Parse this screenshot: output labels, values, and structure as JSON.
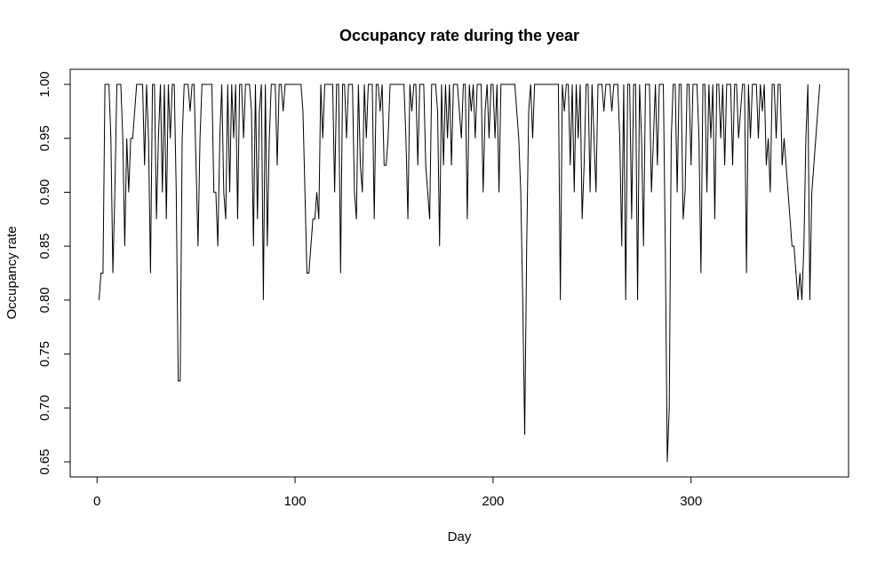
{
  "chart_data": {
    "type": "line",
    "title": "Occupancy rate during the year",
    "xlabel": "Day",
    "ylabel": "Occupancy rate",
    "color": "#000000",
    "xlim": [
      -13.56,
      379.56
    ],
    "xticks": [
      0,
      100,
      200,
      300
    ],
    "ylim": [
      0.636,
      1.014
    ],
    "yticks": [
      0.65,
      {
        "value": 0.7,
        "label": "0.70"
      },
      0.75,
      {
        "value": 0.8,
        "label": "0.80"
      },
      0.85,
      {
        "value": 0.9,
        "label": "0.90"
      },
      0.95,
      {
        "value": 1,
        "label": "1.00"
      }
    ],
    "x": [
      1,
      2,
      3,
      4,
      5,
      6,
      7,
      8,
      9,
      10,
      11,
      12,
      13,
      14,
      15,
      16,
      17,
      18,
      19,
      20,
      21,
      22,
      23,
      24,
      25,
      26,
      27,
      28,
      29,
      30,
      31,
      32,
      33,
      34,
      35,
      36,
      37,
      38,
      39,
      40,
      41,
      42,
      43,
      44,
      45,
      46,
      47,
      48,
      49,
      50,
      51,
      52,
      53,
      54,
      55,
      56,
      57,
      58,
      59,
      60,
      61,
      62,
      63,
      64,
      65,
      66,
      67,
      68,
      69,
      70,
      71,
      72,
      73,
      74,
      75,
      76,
      77,
      78,
      79,
      80,
      81,
      82,
      83,
      84,
      85,
      86,
      87,
      88,
      89,
      90,
      91,
      92,
      93,
      94,
      95,
      96,
      97,
      98,
      99,
      100,
      101,
      102,
      103,
      104,
      105,
      106,
      107,
      108,
      109,
      110,
      111,
      112,
      113,
      114,
      115,
      116,
      117,
      118,
      119,
      120,
      121,
      122,
      123,
      124,
      125,
      126,
      127,
      128,
      129,
      130,
      131,
      132,
      133,
      134,
      135,
      136,
      137,
      138,
      139,
      140,
      141,
      142,
      143,
      144,
      145,
      146,
      147,
      148,
      149,
      150,
      151,
      152,
      153,
      154,
      155,
      156,
      157,
      158,
      159,
      160,
      161,
      162,
      163,
      164,
      165,
      166,
      167,
      168,
      169,
      170,
      171,
      172,
      173,
      174,
      175,
      176,
      177,
      178,
      179,
      180,
      181,
      182,
      183,
      184,
      185,
      186,
      187,
      188,
      189,
      190,
      191,
      192,
      193,
      194,
      195,
      196,
      197,
      198,
      199,
      200,
      201,
      202,
      203,
      204,
      205,
      206,
      207,
      208,
      209,
      210,
      211,
      212,
      213,
      214,
      215,
      216,
      217,
      218,
      219,
      220,
      221,
      222,
      223,
      224,
      225,
      226,
      227,
      228,
      229,
      230,
      231,
      232,
      233,
      234,
      235,
      236,
      237,
      238,
      239,
      240,
      241,
      242,
      243,
      244,
      245,
      246,
      247,
      248,
      249,
      250,
      251,
      252,
      253,
      254,
      255,
      256,
      257,
      258,
      259,
      260,
      261,
      262,
      263,
      264,
      265,
      266,
      267,
      268,
      269,
      270,
      271,
      272,
      273,
      274,
      275,
      276,
      277,
      278,
      279,
      280,
      281,
      282,
      283,
      284,
      285,
      286,
      287,
      288,
      289,
      290,
      291,
      292,
      293,
      294,
      295,
      296,
      297,
      298,
      299,
      300,
      301,
      302,
      303,
      304,
      305,
      306,
      307,
      308,
      309,
      310,
      311,
      312,
      313,
      314,
      315,
      316,
      317,
      318,
      319,
      320,
      321,
      322,
      323,
      324,
      325,
      326,
      327,
      328,
      329,
      330,
      331,
      332,
      333,
      334,
      335,
      336,
      337,
      338,
      339,
      340,
      341,
      342,
      343,
      344,
      345,
      346,
      347,
      348,
      349,
      350,
      351,
      352,
      353,
      354,
      355,
      356,
      357,
      358,
      359,
      360,
      361,
      362,
      363,
      364,
      365
    ],
    "values": [
      0.8,
      0.825,
      0.825,
      1,
      1,
      1,
      0.95,
      0.825,
      0.9,
      1,
      1,
      1,
      0.95,
      0.85,
      0.95,
      0.9,
      0.95,
      0.95,
      0.975,
      1,
      1,
      1,
      1,
      0.925,
      1,
      0.95,
      0.825,
      1,
      1,
      0.875,
      0.95,
      1,
      0.9,
      1,
      0.875,
      1,
      0.95,
      1,
      1,
      0.9,
      0.725,
      0.725,
      0.95,
      1,
      1,
      1,
      0.975,
      1,
      1,
      0.925,
      0.85,
      0.95,
      1,
      1,
      1,
      1,
      1,
      1,
      0.9,
      0.9,
      0.85,
      0.95,
      1,
      0.9,
      0.875,
      1,
      0.9,
      1,
      0.95,
      1,
      0.875,
      1,
      1,
      0.95,
      1,
      1,
      1,
      0.975,
      0.85,
      1,
      0.875,
      0.975,
      1,
      0.8,
      1,
      0.85,
      0.95,
      1,
      1,
      1,
      0.925,
      1,
      1,
      0.975,
      1,
      1,
      1,
      1,
      1,
      1,
      1,
      1,
      1,
      0.975,
      0.9,
      0.825,
      0.825,
      0.85,
      0.875,
      0.875,
      0.9,
      0.875,
      1,
      0.95,
      1,
      1,
      1,
      1,
      1,
      0.9,
      1,
      1,
      0.825,
      1,
      1,
      0.95,
      1,
      1,
      1,
      0.9,
      0.875,
      1,
      0.925,
      0.9,
      1,
      0.95,
      1,
      1,
      1,
      0.875,
      1,
      1,
      0.975,
      1,
      0.925,
      0.925,
      0.95,
      1,
      1,
      1,
      1,
      1,
      1,
      1,
      1,
      0.95,
      0.875,
      1,
      0.975,
      1,
      1,
      0.925,
      1,
      1,
      1,
      0.925,
      0.9,
      0.875,
      1,
      1,
      1,
      0.975,
      0.85,
      1,
      0.925,
      1,
      0.95,
      1,
      0.925,
      1,
      1,
      1,
      0.975,
      0.95,
      1,
      1,
      0.875,
      1,
      0.975,
      1,
      0.95,
      1,
      1,
      1,
      0.9,
      0.975,
      1,
      0.95,
      1,
      1,
      0.95,
      1,
      0.9,
      1,
      1,
      1,
      1,
      1,
      1,
      1,
      1,
      0.975,
      0.95,
      0.9,
      0.8,
      0.675,
      0.85,
      0.975,
      1,
      0.95,
      1,
      1,
      1,
      1,
      1,
      1,
      1,
      1,
      1,
      1,
      1,
      1,
      1,
      0.8,
      1,
      0.975,
      1,
      1,
      0.925,
      1,
      0.9,
      1,
      0.95,
      1,
      0.875,
      0.925,
      1,
      1,
      0.9,
      1,
      0.95,
      0.9,
      1,
      1,
      1,
      0.975,
      1,
      1,
      1,
      0.975,
      1,
      1,
      1,
      0.95,
      0.85,
      1,
      0.8,
      1,
      1,
      0.875,
      1,
      1,
      0.8,
      1,
      0.95,
      0.85,
      1,
      1,
      1,
      0.9,
      0.95,
      1,
      0.925,
      1,
      1,
      1,
      0.85,
      0.65,
      0.7,
      0.95,
      1,
      1,
      0.9,
      1,
      1,
      0.875,
      0.9,
      1,
      1,
      0.925,
      1,
      1,
      1,
      0.95,
      0.825,
      1,
      1,
      0.9,
      1,
      0.95,
      1,
      0.875,
      1,
      1,
      0.95,
      1,
      0.925,
      1,
      1,
      1,
      0.925,
      1,
      1,
      0.95,
      0.975,
      1,
      1,
      0.825,
      1,
      0.95,
      1,
      1,
      1,
      0.95,
      1,
      0.975,
      1,
      0.925,
      0.95,
      0.9,
      1,
      1,
      0.95,
      1,
      1,
      0.925,
      0.95,
      0.925,
      0.9,
      0.875,
      0.85,
      0.85,
      0.825,
      0.8,
      0.825,
      0.8,
      0.85,
      0.95,
      1,
      0.8,
      0.9,
      0.925,
      0.95,
      0.975,
      1
    ]
  }
}
